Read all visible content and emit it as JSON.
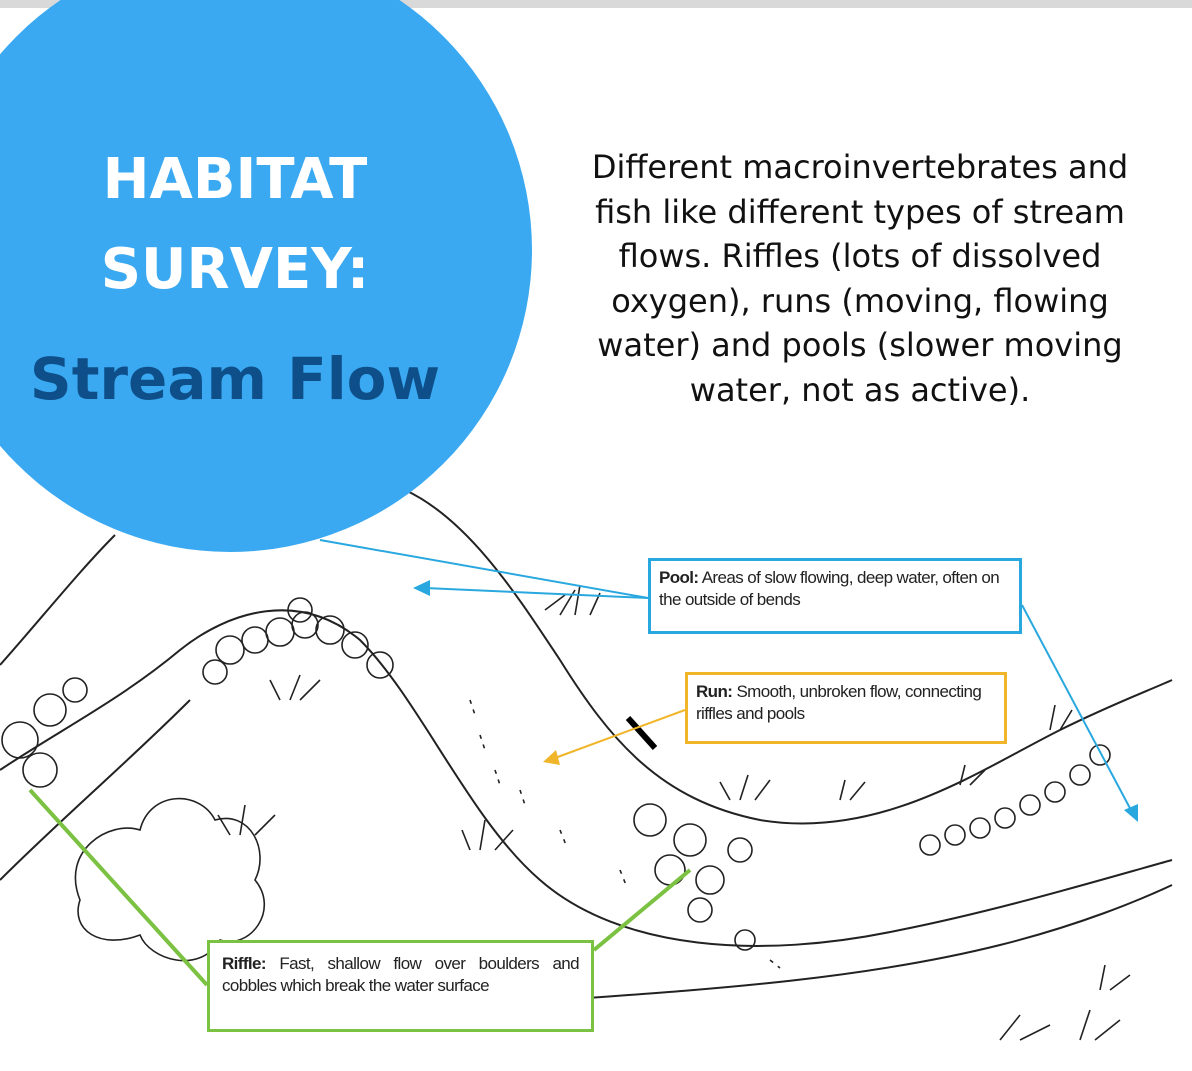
{
  "header": {
    "title_lines": [
      "HABITAT",
      "SURVEY:"
    ],
    "subtitle": "Stream Flow"
  },
  "description": "Different macroinvertebrates and fish like different types of stream flows. Riffles (lots of dissolved oxygen), runs (moving, flowing water) and pools (slower moving water, not as active).",
  "labels": {
    "pool": {
      "term": "Pool:",
      "text": "Areas of slow flowing, deep water, often on the outside of bends"
    },
    "run": {
      "term": "Run:",
      "text": "Smooth, unbroken flow, connecting riffles and pools"
    },
    "riffle": {
      "term": "Riffle:",
      "text": "Fast, shallow flow over boulders and cobbles which break the water surface"
    }
  }
}
